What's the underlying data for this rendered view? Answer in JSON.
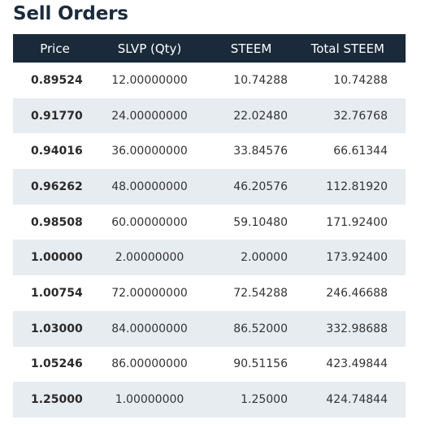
{
  "title": "Sell Orders",
  "columns": {
    "price": "Price",
    "qty": "SLVP (Qty)",
    "steem": "STEEM",
    "total": "Total STEEM"
  },
  "rows": [
    {
      "price": "0.89524",
      "qty": "12.00000000",
      "steem": "10.74288",
      "total": "10.74288"
    },
    {
      "price": "0.91770",
      "qty": "24.00000000",
      "steem": "22.02480",
      "total": "32.76768"
    },
    {
      "price": "0.94016",
      "qty": "36.00000000",
      "steem": "33.84576",
      "total": "66.61344"
    },
    {
      "price": "0.96262",
      "qty": "48.00000000",
      "steem": "46.20576",
      "total": "112.81920"
    },
    {
      "price": "0.98508",
      "qty": "60.00000000",
      "steem": "59.10480",
      "total": "171.92400"
    },
    {
      "price": "1.00000",
      "qty": "2.00000000",
      "steem": "2.00000",
      "total": "173.92400"
    },
    {
      "price": "1.00754",
      "qty": "72.00000000",
      "steem": "72.54288",
      "total": "246.46688"
    },
    {
      "price": "1.03000",
      "qty": "84.00000000",
      "steem": "86.52000",
      "total": "332.98688"
    },
    {
      "price": "1.05246",
      "qty": "86.00000000",
      "steem": "90.51156",
      "total": "423.49844"
    },
    {
      "price": "1.25000",
      "qty": "1.00000000",
      "steem": "1.25000",
      "total": "424.74844"
    }
  ],
  "colors": {
    "header_bg": "#1a2a3a",
    "stripe_bg": "#e7ecf1",
    "title": "#1a2b3c"
  }
}
